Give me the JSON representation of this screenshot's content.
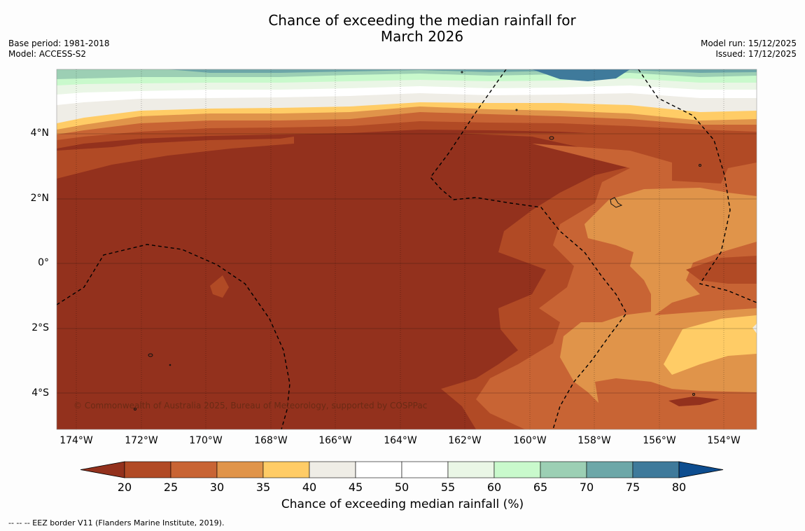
{
  "title": {
    "line1": "Chance of exceeding the median rainfall for",
    "line2": "March 2026"
  },
  "meta_left": {
    "base_period": "Base period: 1981-2018",
    "model": "Model: ACCESS-S2"
  },
  "meta_right": {
    "model_run": "Model run: 15/12/2025",
    "issued": "Issued: 17/12/2025"
  },
  "map": {
    "lat_labels": [
      "4°N",
      "2°N",
      "0°",
      "2°S",
      "4°S"
    ],
    "lon_labels": [
      "174°W",
      "172°W",
      "170°W",
      "168°W",
      "166°W",
      "164°W",
      "162°W",
      "160°W",
      "158°W",
      "156°W",
      "154°W"
    ],
    "copyright": "© Commonwealth of Australia 2025, Bureau of Meteorology, supported by COSPPac"
  },
  "colorbar": {
    "ticks": [
      "20",
      "25",
      "30",
      "35",
      "40",
      "45",
      "50",
      "55",
      "60",
      "65",
      "70",
      "75",
      "80"
    ],
    "colors": [
      "#93311d",
      "#b14a25",
      "#c86434",
      "#e0944a",
      "#ffcc66",
      "#efede6",
      "#ffffff",
      "#ffffff",
      "#eaf6e6",
      "#c9f9cc",
      "#9ccfb4",
      "#6da7a8",
      "#3f7a9b",
      "#0d4d8f"
    ],
    "label": "Chance of exceeding median rainfall (%)"
  },
  "footnote": "--  --  -- EEZ border V11 (Flanders Marine Institute, 2019)."
}
